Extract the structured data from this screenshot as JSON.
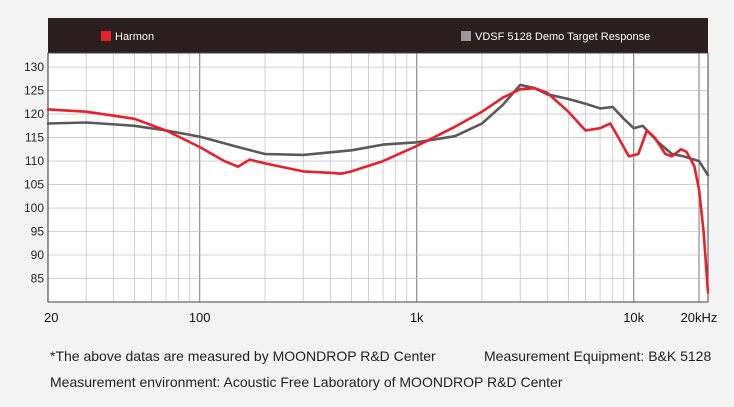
{
  "chart_data": {
    "type": "line",
    "title": "",
    "xlabel": "",
    "ylabel": "",
    "xscale": "log",
    "xlim": [
      20,
      22000
    ],
    "ylim": [
      80,
      133
    ],
    "grid": true,
    "legend_placement": "top",
    "x_ticks": [
      {
        "value": 20,
        "label": "20"
      },
      {
        "value": 100,
        "label": "100"
      },
      {
        "value": 1000,
        "label": "1k"
      },
      {
        "value": 10000,
        "label": "10k"
      },
      {
        "value": 20000,
        "label": "20kHz"
      }
    ],
    "y_ticks": [
      85,
      90,
      95,
      100,
      105,
      110,
      115,
      120,
      125,
      130
    ],
    "series": [
      {
        "name": "VDSF 5128 Demo Target Response",
        "color": "#5a5a5a",
        "points": [
          [
            20,
            118
          ],
          [
            30,
            118.2
          ],
          [
            50,
            117.5
          ],
          [
            70,
            116.5
          ],
          [
            100,
            115.2
          ],
          [
            150,
            113
          ],
          [
            200,
            111.5
          ],
          [
            300,
            111.3
          ],
          [
            500,
            112.3
          ],
          [
            700,
            113.5
          ],
          [
            1000,
            114
          ],
          [
            1500,
            115.3
          ],
          [
            2000,
            118
          ],
          [
            2500,
            122
          ],
          [
            3000,
            126.2
          ],
          [
            3500,
            125.5
          ],
          [
            4000,
            124.2
          ],
          [
            5000,
            123.2
          ],
          [
            6000,
            122.2
          ],
          [
            7000,
            121.2
          ],
          [
            8000,
            121.5
          ],
          [
            9000,
            119
          ],
          [
            10000,
            117
          ],
          [
            11000,
            117.5
          ],
          [
            13000,
            114
          ],
          [
            15000,
            111.5
          ],
          [
            17000,
            111
          ],
          [
            19000,
            110.3
          ],
          [
            20000,
            110
          ],
          [
            22000,
            107
          ]
        ]
      },
      {
        "name": "Harmon",
        "color": "#e8202a",
        "points": [
          [
            20,
            121
          ],
          [
            30,
            120.5
          ],
          [
            50,
            119
          ],
          [
            70,
            116.5
          ],
          [
            100,
            113
          ],
          [
            130,
            110
          ],
          [
            150,
            108.8
          ],
          [
            170,
            110.3
          ],
          [
            200,
            109.5
          ],
          [
            300,
            107.8
          ],
          [
            400,
            107.5
          ],
          [
            450,
            107.3
          ],
          [
            500,
            107.8
          ],
          [
            700,
            110
          ],
          [
            1000,
            113.2
          ],
          [
            1500,
            117.3
          ],
          [
            2000,
            120.5
          ],
          [
            2500,
            123.5
          ],
          [
            3000,
            125.3
          ],
          [
            3500,
            125.5
          ],
          [
            4000,
            124.5
          ],
          [
            5000,
            120.5
          ],
          [
            6000,
            116.5
          ],
          [
            7000,
            117
          ],
          [
            7800,
            118
          ],
          [
            8500,
            115
          ],
          [
            9500,
            111
          ],
          [
            10500,
            111.5
          ],
          [
            11500,
            116.5
          ],
          [
            12500,
            115
          ],
          [
            14000,
            111.5
          ],
          [
            15000,
            111
          ],
          [
            16500,
            112.5
          ],
          [
            17500,
            112
          ],
          [
            19000,
            109
          ],
          [
            20000,
            104
          ],
          [
            21000,
            95
          ],
          [
            22000,
            82
          ]
        ]
      }
    ]
  },
  "notes": {
    "line1": "*The above datas are measured by MOONDROP R&D Center",
    "line2": "Measurement Equipment: B&K 5128",
    "line3": "Measurement environment: Acoustic Free Laboratory of MOONDROP R&D Center"
  }
}
